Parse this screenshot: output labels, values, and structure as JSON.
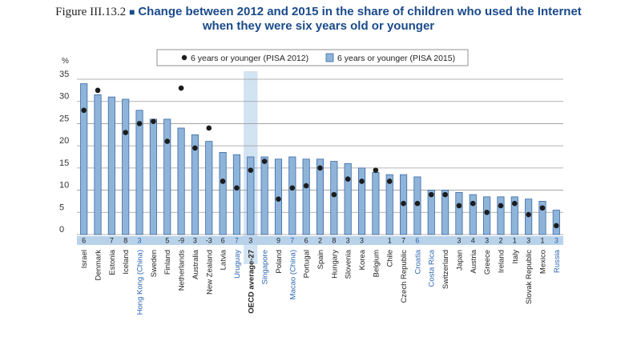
{
  "figure_label": "Figure III.13.2",
  "title_line1": "Change between 2012 and 2015 in the share of children who used the Internet",
  "title_line2": "when they were six years old or younger",
  "colors": {
    "bar": "#8fb4d9",
    "bar_stroke": "#3a6aa5",
    "dot": "#1c1c1c",
    "highlight": "#d2e3f2",
    "number_band": "#b8d2ea",
    "title": "#1a4a8a",
    "blue_label": "#2a63b0"
  },
  "chart_data": {
    "type": "bar",
    "title": "Change between 2012 and 2015 in the share of children who used the Internet when they were six years old or younger",
    "ylabel": "%",
    "ylim": [
      0,
      35
    ],
    "yticks": [
      0,
      5,
      10,
      15,
      20,
      25,
      30,
      35
    ],
    "grid": true,
    "legend_position": "top-right",
    "categories": [
      "Israel",
      "Denmark",
      "Estonia",
      "Iceland",
      "Hong Kong (China)",
      "Sweden",
      "Finland",
      "Netherlands",
      "Australia",
      "New Zealand",
      "Latvia",
      "Uruguay",
      "OECD average-27",
      "Singapore",
      "Poland",
      "Macao (China)",
      "Portugal",
      "Spain",
      "Hungary",
      "Slovenia",
      "Korea",
      "Belgium",
      "Chile",
      "Czech Republic",
      "Croatia",
      "Costa Rica",
      "Switzerland",
      "Japan",
      "Austria",
      "Greece",
      "Ireland",
      "Italy",
      "Slovak Republic",
      "Mexico",
      "Russia"
    ],
    "change_labels": [
      "6",
      "",
      "7",
      "8",
      "3",
      "",
      "5",
      "-9",
      "3",
      "-3",
      "6",
      "7",
      "3",
      "",
      "9",
      "7",
      "6",
      "2",
      "8",
      "3",
      "3",
      "",
      "1",
      "7",
      "6",
      "",
      "",
      "3",
      "4",
      "3",
      "2",
      "1",
      "3",
      "1",
      "3"
    ],
    "blue_categories": [
      "Hong Kong (China)",
      "Uruguay",
      "Singapore",
      "Macao (China)",
      "Croatia",
      "Costa Rica",
      "Russia"
    ],
    "highlight_category": "OECD average-27",
    "series": [
      {
        "name": "6 years or younger (PISA 2012)",
        "kind": "dot",
        "values": [
          28.0,
          32.5,
          null,
          23.0,
          25.0,
          25.5,
          21.0,
          33.0,
          19.5,
          24.0,
          12.0,
          10.5,
          14.5,
          16.5,
          8.0,
          10.5,
          11.0,
          15.0,
          9.0,
          12.5,
          12.0,
          14.5,
          12.0,
          7.0,
          7.0,
          9.0,
          9.0,
          6.5,
          7.0,
          5.0,
          6.5,
          7.0,
          4.5,
          6.0,
          2.0
        ]
      },
      {
        "name": "6 years or younger (PISA 2015)",
        "kind": "bar",
        "values": [
          34.0,
          31.5,
          31.0,
          30.5,
          28.0,
          26.0,
          26.0,
          24.0,
          22.5,
          21.0,
          18.5,
          18.0,
          17.5,
          17.5,
          17.0,
          17.5,
          17.0,
          17.0,
          16.5,
          16.0,
          15.0,
          14.0,
          13.5,
          13.5,
          13.0,
          10.0,
          10.0,
          9.5,
          9.0,
          8.5,
          8.5,
          8.5,
          8.0,
          7.5,
          5.5
        ]
      }
    ]
  }
}
